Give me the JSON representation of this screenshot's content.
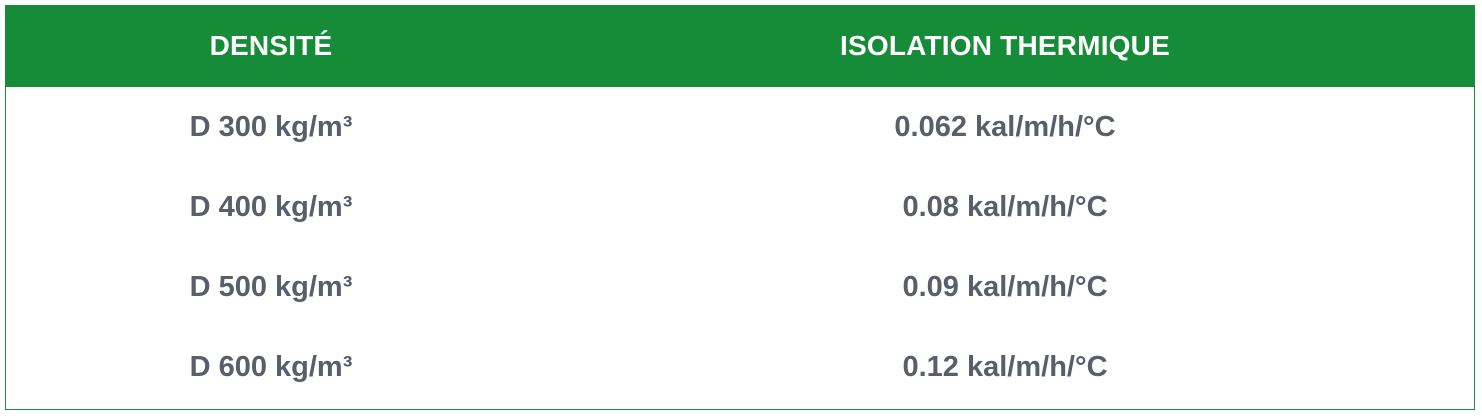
{
  "table": {
    "header_color": "#168c38",
    "columns": [
      "DENSITÉ",
      "ISOLATION THERMIQUE"
    ],
    "rows": [
      [
        "D 300 kg/m³",
        "0.062 kal/m/h/°C"
      ],
      [
        "D 400 kg/m³",
        "0.08 kal/m/h/°C"
      ],
      [
        "D 500 kg/m³",
        "0.09 kal/m/h/°C"
      ],
      [
        "D 600 kg/m³",
        "0.12 kal/m/h/°C"
      ]
    ]
  }
}
